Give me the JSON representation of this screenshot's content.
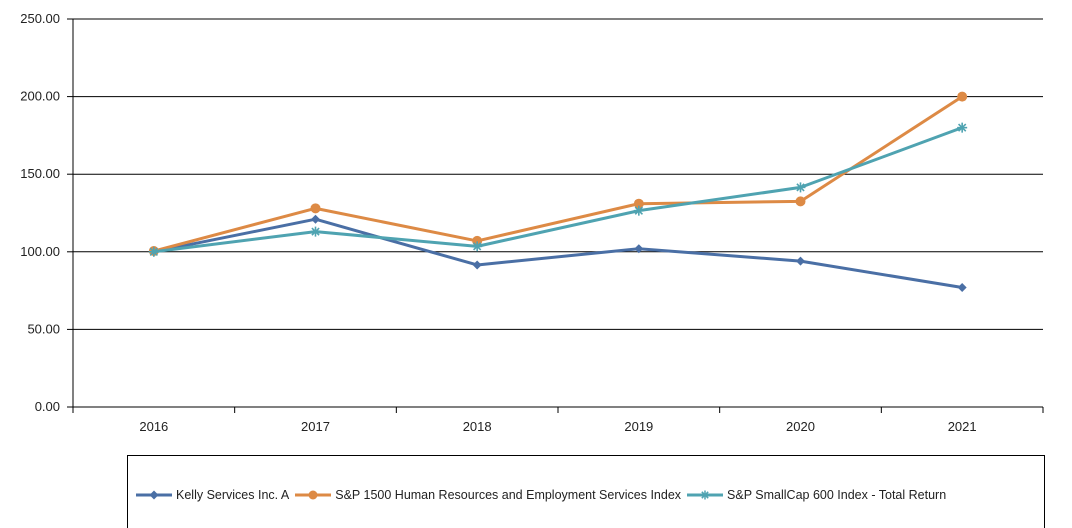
{
  "chart_data": {
    "type": "line",
    "title": "",
    "xlabel": "",
    "ylabel": "",
    "categories": [
      "2016",
      "2017",
      "2018",
      "2019",
      "2020",
      "2021"
    ],
    "ylim": [
      0,
      250
    ],
    "yticks": [
      "0.00",
      "50.00",
      "100.00",
      "150.00",
      "200.00",
      "250.00"
    ],
    "grid": "horizontal",
    "legend_position": "bottom",
    "series": [
      {
        "name": "Kelly Services Inc. A",
        "color": "#4a6fa5",
        "marker": "diamond",
        "values": [
          100,
          121,
          91.5,
          102,
          94,
          77
        ]
      },
      {
        "name": "S&P 1500  Human Resources and Employment Services Index",
        "color": "#dd8a45",
        "marker": "circle",
        "values": [
          100.5,
          128,
          107,
          131,
          132.5,
          200
        ]
      },
      {
        "name": "S&P SmallCap 600 Index - Total Return",
        "color": "#4fa3b1",
        "marker": "asterisk",
        "values": [
          100,
          113,
          103.5,
          126.5,
          141.5,
          180
        ]
      }
    ]
  }
}
